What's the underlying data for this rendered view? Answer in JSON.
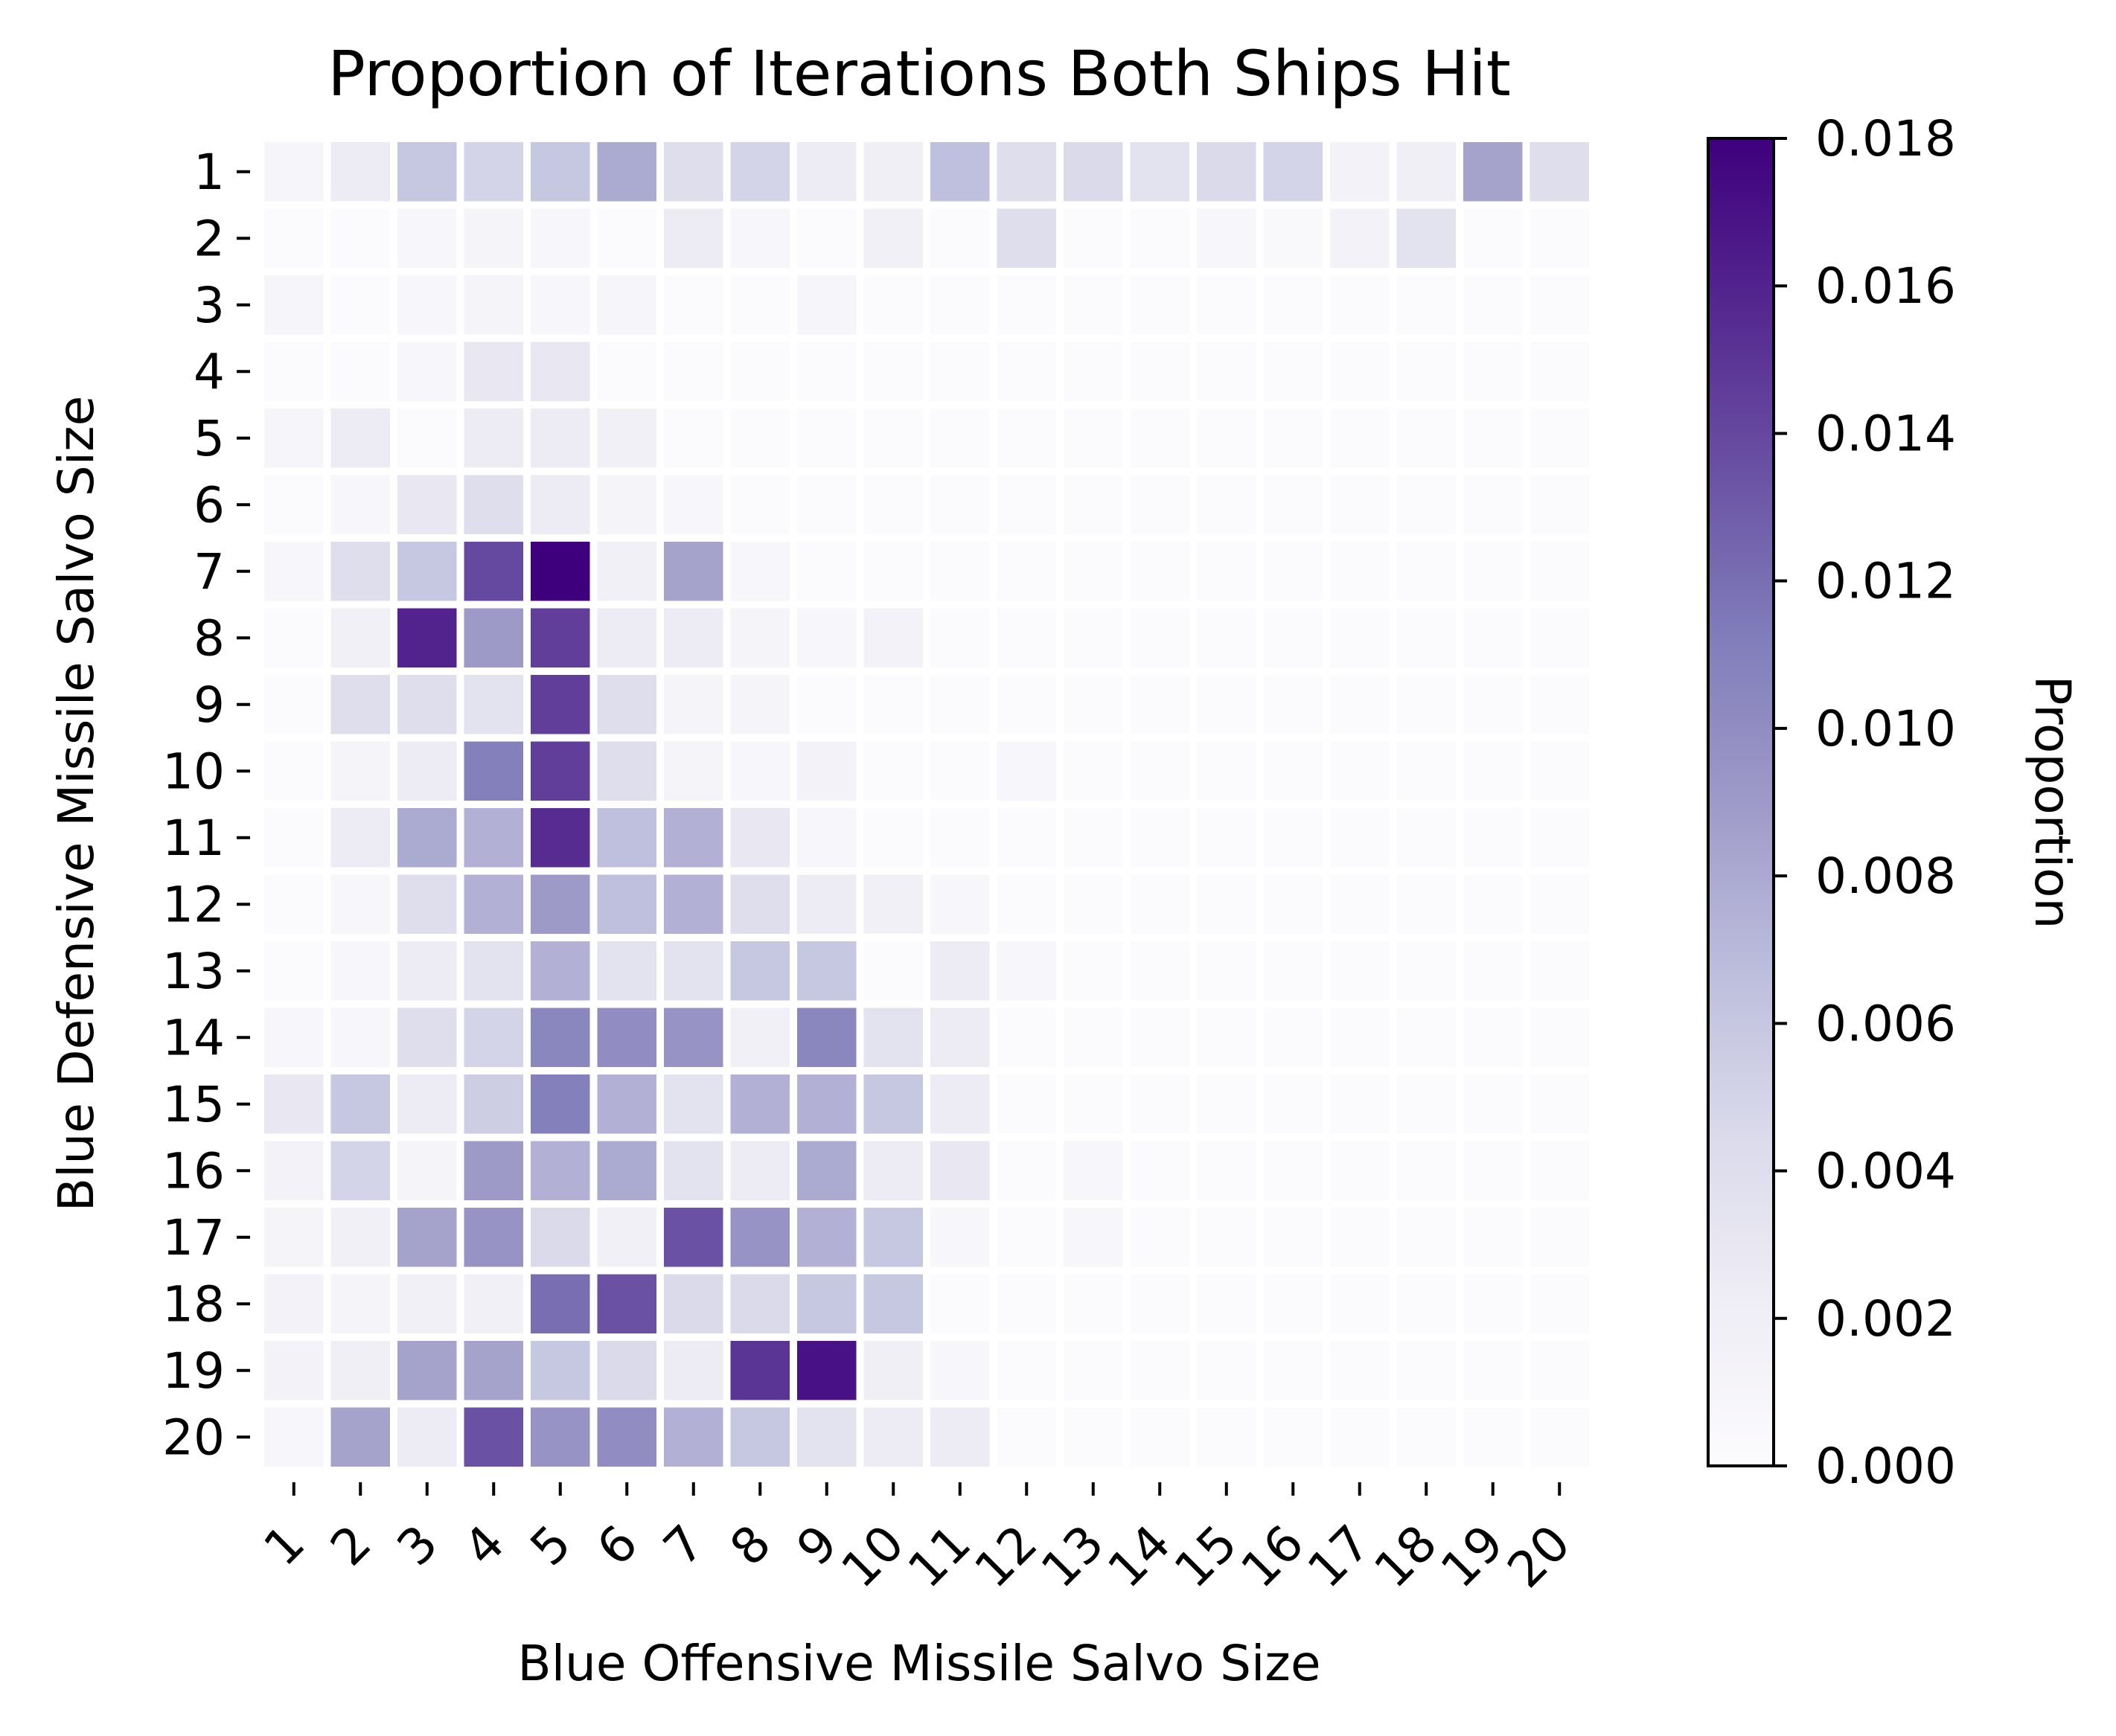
{
  "chart_data": {
    "type": "heatmap",
    "title": "Proportion of Iterations Both Ships Hit",
    "xlabel": "Blue Offensive Missile Salvo Size",
    "ylabel": "Blue Defensive Missile Salvo Size",
    "x_categories": [
      "1",
      "2",
      "3",
      "4",
      "5",
      "6",
      "7",
      "8",
      "9",
      "10",
      "11",
      "12",
      "13",
      "14",
      "15",
      "16",
      "17",
      "18",
      "19",
      "20"
    ],
    "y_categories": [
      "1",
      "2",
      "3",
      "4",
      "5",
      "6",
      "7",
      "8",
      "9",
      "10",
      "11",
      "12",
      "13",
      "14",
      "15",
      "16",
      "17",
      "18",
      "19",
      "20"
    ],
    "values": [
      [
        0.001,
        0.0025,
        0.006,
        0.005,
        0.006,
        0.008,
        0.004,
        0.005,
        0.0025,
        0.002,
        0.0065,
        0.004,
        0.0045,
        0.0035,
        0.0045,
        0.005,
        0.0015,
        0.002,
        0.0085,
        0.004
      ],
      [
        0.0002,
        0.0002,
        0.0008,
        0.0012,
        0.0008,
        0.0002,
        0.0025,
        0.0008,
        0.0002,
        0.0018,
        0.0002,
        0.004,
        0.0002,
        0.0002,
        0.0008,
        0.0005,
        0.0015,
        0.0035,
        0.0002,
        0.0002
      ],
      [
        0.001,
        0.0002,
        0.0008,
        0.0012,
        0.0008,
        0.001,
        0.0002,
        0.0002,
        0.001,
        0.0002,
        0.0002,
        0.0002,
        0.0002,
        0.0002,
        0.0002,
        0.0002,
        0.0002,
        0.0002,
        0.0002,
        0.0002
      ],
      [
        0.0002,
        0.0002,
        0.0008,
        0.003,
        0.003,
        0.0002,
        0.0002,
        0.0002,
        0.0002,
        0.0002,
        0.0002,
        0.0002,
        0.0002,
        0.0002,
        0.0002,
        0.0002,
        0.0002,
        0.0002,
        0.0002,
        0.0002
      ],
      [
        0.001,
        0.0025,
        0.0002,
        0.0025,
        0.0025,
        0.0018,
        0.0002,
        0.0002,
        0.0002,
        0.0002,
        0.0002,
        0.0002,
        0.0002,
        0.0002,
        0.0002,
        0.0002,
        0.0002,
        0.0002,
        0.0002,
        0.0002
      ],
      [
        0.0002,
        0.0008,
        0.003,
        0.004,
        0.0025,
        0.0012,
        0.0008,
        0.0002,
        0.0002,
        0.0002,
        0.0002,
        0.0002,
        0.0002,
        0.0002,
        0.0002,
        0.0002,
        0.0002,
        0.0002,
        0.0002,
        0.0002
      ],
      [
        0.0008,
        0.004,
        0.006,
        0.014,
        0.018,
        0.0018,
        0.0085,
        0.0008,
        0.0002,
        0.0002,
        0.0002,
        0.0002,
        0.0002,
        0.0002,
        0.0002,
        0.0002,
        0.0002,
        0.0002,
        0.0002,
        0.0002
      ],
      [
        0.0002,
        0.0018,
        0.016,
        0.009,
        0.0145,
        0.0025,
        0.0025,
        0.0012,
        0.0008,
        0.0015,
        0.0002,
        0.0002,
        0.0002,
        0.0002,
        0.0002,
        0.0002,
        0.0002,
        0.0002,
        0.0002,
        0.0002
      ],
      [
        0.0002,
        0.004,
        0.004,
        0.0035,
        0.0145,
        0.004,
        0.0012,
        0.0012,
        0.0002,
        0.0002,
        0.0002,
        0.0002,
        0.0002,
        0.0002,
        0.0002,
        0.0002,
        0.0002,
        0.0002,
        0.0002,
        0.0002
      ],
      [
        0.0002,
        0.0012,
        0.0025,
        0.011,
        0.0145,
        0.004,
        0.0012,
        0.0008,
        0.0015,
        0.0002,
        0.0002,
        0.0008,
        0.0002,
        0.0002,
        0.0002,
        0.0002,
        0.0002,
        0.0002,
        0.0002,
        0.0002
      ],
      [
        0.0002,
        0.0025,
        0.008,
        0.0075,
        0.0155,
        0.0065,
        0.0075,
        0.003,
        0.0008,
        0.0002,
        0.0002,
        0.0002,
        0.0002,
        0.0002,
        0.0002,
        0.0002,
        0.0002,
        0.0002,
        0.0002,
        0.0002
      ],
      [
        0.0002,
        0.0008,
        0.004,
        0.0075,
        0.009,
        0.0065,
        0.0075,
        0.004,
        0.0025,
        0.0018,
        0.0008,
        0.0002,
        0.0002,
        0.0002,
        0.0002,
        0.0002,
        0.0002,
        0.0002,
        0.0002,
        0.0002
      ],
      [
        0.0002,
        0.0008,
        0.0025,
        0.0035,
        0.0075,
        0.0035,
        0.0035,
        0.006,
        0.006,
        0.0002,
        0.0025,
        0.0008,
        0.0002,
        0.0002,
        0.0002,
        0.0002,
        0.0002,
        0.0002,
        0.0002,
        0.0002
      ],
      [
        0.0008,
        0.0008,
        0.004,
        0.005,
        0.0105,
        0.01,
        0.0095,
        0.0018,
        0.0105,
        0.0035,
        0.0025,
        0.0002,
        0.0002,
        0.0002,
        0.0002,
        0.0002,
        0.0002,
        0.0002,
        0.0002,
        0.0002
      ],
      [
        0.003,
        0.006,
        0.0025,
        0.0055,
        0.011,
        0.0075,
        0.0035,
        0.0075,
        0.0075,
        0.006,
        0.0025,
        0.0002,
        0.0002,
        0.0002,
        0.0002,
        0.0002,
        0.0002,
        0.0002,
        0.0002,
        0.0002
      ],
      [
        0.0015,
        0.005,
        0.0012,
        0.009,
        0.0075,
        0.008,
        0.0035,
        0.0025,
        0.008,
        0.0025,
        0.003,
        0.0002,
        0.0008,
        0.0002,
        0.0002,
        0.0002,
        0.0002,
        0.0002,
        0.0002,
        0.0002
      ],
      [
        0.0012,
        0.0018,
        0.0085,
        0.0095,
        0.0045,
        0.0018,
        0.0135,
        0.0095,
        0.0075,
        0.006,
        0.0008,
        0.0002,
        0.0008,
        0.0002,
        0.0002,
        0.0002,
        0.0002,
        0.0002,
        0.0002,
        0.0002
      ],
      [
        0.0015,
        0.0012,
        0.0018,
        0.0018,
        0.012,
        0.0135,
        0.0045,
        0.0045,
        0.006,
        0.006,
        0.0002,
        0.0002,
        0.0002,
        0.0002,
        0.0002,
        0.0002,
        0.0002,
        0.0002,
        0.0002,
        0.0002
      ],
      [
        0.0015,
        0.002,
        0.0085,
        0.0085,
        0.006,
        0.0045,
        0.0025,
        0.015,
        0.017,
        0.002,
        0.0008,
        0.0002,
        0.0002,
        0.0002,
        0.0002,
        0.0002,
        0.0002,
        0.0002,
        0.0002,
        0.0002
      ],
      [
        0.0008,
        0.0085,
        0.0025,
        0.0135,
        0.0095,
        0.01,
        0.0075,
        0.006,
        0.0035,
        0.0025,
        0.0025,
        0.0002,
        0.0002,
        0.0002,
        0.0002,
        0.0002,
        0.0002,
        0.0002,
        0.0002,
        0.0002
      ]
    ],
    "colorbar": {
      "label": "Proportion",
      "range": [
        0,
        0.018
      ],
      "ticks": [
        "0.000",
        "0.002",
        "0.004",
        "0.006",
        "0.008",
        "0.010",
        "0.012",
        "0.014",
        "0.016",
        "0.018"
      ],
      "colormap": "Purples",
      "colors": [
        "#fcfbfd",
        "#efedf5",
        "#dadaeb",
        "#bcbddc",
        "#9e9ac8",
        "#807dba",
        "#6a51a3",
        "#54278f",
        "#3f007d"
      ]
    }
  }
}
